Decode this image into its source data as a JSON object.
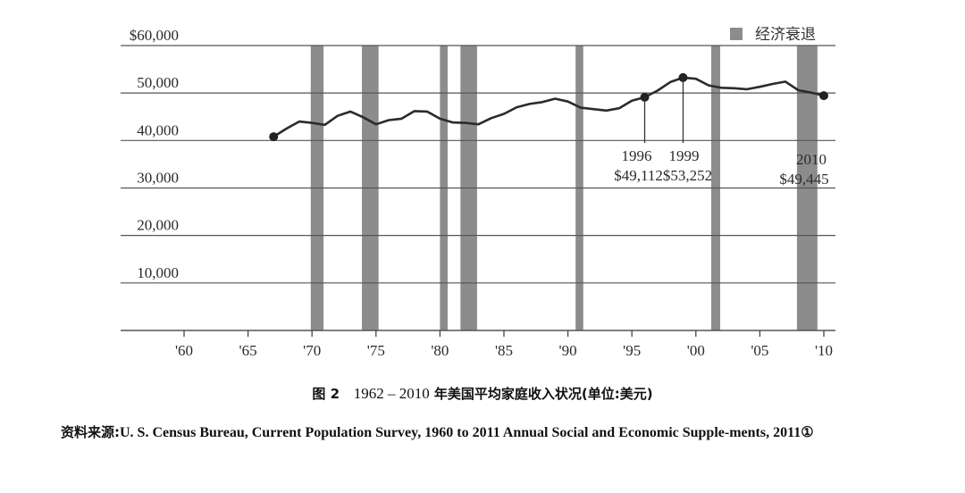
{
  "chart_data": {
    "type": "line",
    "title": "图 2　1962－2010 年美国平均家庭收入状况(单位:美元)",
    "xlabel": "",
    "ylabel": "",
    "ylim": [
      0,
      60000
    ],
    "xlim": [
      1956,
      2011
    ],
    "grid": true,
    "legend_position": "top-right",
    "legend": [
      "经济衰退"
    ],
    "y_ticks": [
      {
        "value": 0,
        "label": ""
      },
      {
        "value": 10000,
        "label": "10,000"
      },
      {
        "value": 20000,
        "label": "20,000"
      },
      {
        "value": 30000,
        "label": "30,000"
      },
      {
        "value": 40000,
        "label": "40,000"
      },
      {
        "value": 50000,
        "label": "50,000"
      },
      {
        "value": 60000,
        "label": "$60,000"
      }
    ],
    "x_ticks": [
      {
        "value": 1960,
        "label": "'60"
      },
      {
        "value": 1965,
        "label": "'65"
      },
      {
        "value": 1970,
        "label": "'70"
      },
      {
        "value": 1975,
        "label": "'75"
      },
      {
        "value": 1980,
        "label": "'80"
      },
      {
        "value": 1985,
        "label": "'85"
      },
      {
        "value": 1990,
        "label": "'90"
      },
      {
        "value": 1995,
        "label": "'95"
      },
      {
        "value": 2000,
        "label": "'00"
      },
      {
        "value": 2005,
        "label": "'05"
      },
      {
        "value": 2010,
        "label": "'10"
      }
    ],
    "series": [
      {
        "name": "平均家庭收入",
        "color": "#2b2b2b",
        "values_note": "Only 1996, 1999 and 2010 are printed on the chart. All other values are estimated from the pixel position of the line.",
        "x": [
          1967,
          1968,
          1969,
          1970,
          1971,
          1972,
          1973,
          1974,
          1975,
          1976,
          1977,
          1978,
          1979,
          1980,
          1981,
          1982,
          1983,
          1984,
          1985,
          1986,
          1987,
          1988,
          1989,
          1990,
          1991,
          1992,
          1993,
          1994,
          1995,
          1996,
          1997,
          1998,
          1999,
          2000,
          2001,
          2002,
          2003,
          2004,
          2005,
          2006,
          2007,
          2008,
          2009,
          2010
        ],
        "values": [
          40800,
          42500,
          44000,
          43700,
          43300,
          45200,
          46100,
          44900,
          43400,
          44300,
          44600,
          46200,
          46100,
          44600,
          43800,
          43700,
          43400,
          44700,
          45600,
          47000,
          47700,
          48100,
          48800,
          48200,
          46900,
          46600,
          46300,
          46800,
          48400,
          49112,
          50500,
          52300,
          53252,
          53000,
          51600,
          51100,
          51000,
          50800,
          51300,
          51900,
          52400,
          50600,
          50100,
          49445
        ]
      }
    ],
    "recessions": [
      {
        "start": 1969.9,
        "end": 1970.9
      },
      {
        "start": 1973.9,
        "end": 1975.2
      },
      {
        "start": 1980.0,
        "end": 1980.6
      },
      {
        "start": 1981.6,
        "end": 1982.9
      },
      {
        "start": 1990.6,
        "end": 1991.2
      },
      {
        "start": 2001.2,
        "end": 2001.9
      },
      {
        "start": 2007.9,
        "end": 2009.5
      }
    ],
    "annotations": [
      {
        "year": 1996,
        "value": 49112,
        "label_year": "1996",
        "label_value": "$49,112"
      },
      {
        "year": 1999,
        "value": 53252,
        "label_year": "1999",
        "label_value": "$53,252"
      },
      {
        "year": 2010,
        "value": 49445,
        "label_year": "2010",
        "label_value": "$49,445"
      }
    ],
    "markers": [
      1967,
      1996,
      1999,
      2010
    ]
  },
  "legend": {
    "label": "经济衰退",
    "color": "#8c8c8c"
  },
  "caption": {
    "fig": "图 2",
    "years": "1962 – 2010",
    "text": " 年美国平均家庭收入状况(单位:美元)"
  },
  "source": {
    "prefix": "资料来源:",
    "text": "U. S.  Census  Bureau,  Current  Population  Survey,  1960  to  2011  Annual  Social  and  Economic  Supple-ments,  2011①"
  }
}
